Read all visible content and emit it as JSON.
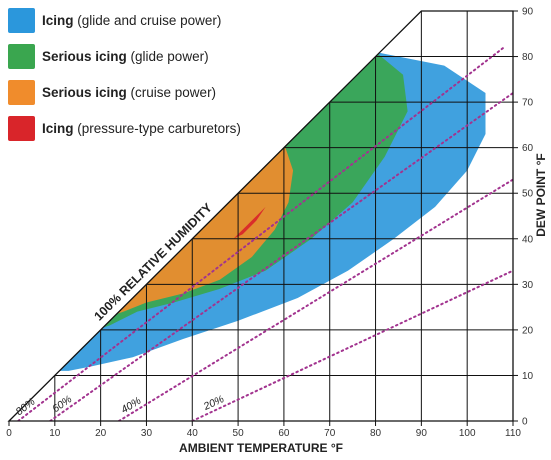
{
  "chart_data": {
    "type": "area",
    "title": "",
    "xlabel": "AMBIENT TEMPERATURE  °F",
    "ylabel": "DEW POINT  °F",
    "xlim": [
      0,
      110
    ],
    "ylim": [
      0,
      90
    ],
    "x_ticks": [
      "0",
      "10",
      "20",
      "30",
      "40",
      "50",
      "60",
      "70",
      "80",
      "90",
      "100",
      "110"
    ],
    "y_ticks": [
      "0",
      "10",
      "20",
      "30",
      "40",
      "50",
      "60",
      "70",
      "80",
      "90"
    ],
    "grid": true,
    "legend": {
      "position": "top-left",
      "entries": [
        {
          "bold": "Icing",
          "rest": " (glide and cruise power)",
          "color": "#2b97dc"
        },
        {
          "bold": "Serious icing",
          "rest": " (glide power)",
          "color": "#3aa64f"
        },
        {
          "bold": "Serious icing",
          "rest": " (cruise power)",
          "color": "#f08c2c"
        },
        {
          "bold": "Icing",
          "rest": " (pressure-type carburetors)",
          "color": "#d9252a"
        }
      ]
    },
    "saturation_line_label": "100% RELATIVE HUMIDITY",
    "humidity_lines": [
      {
        "label": "80%",
        "points": [
          [
            2,
            0
          ],
          [
            108,
            82
          ]
        ]
      },
      {
        "label": "60%",
        "points": [
          [
            9,
            0
          ],
          [
            110,
            72
          ]
        ]
      },
      {
        "label": "40%",
        "points": [
          [
            24,
            0
          ],
          [
            110,
            53
          ]
        ]
      },
      {
        "label": "20%",
        "points": [
          [
            40,
            0
          ],
          [
            110,
            33
          ]
        ]
      }
    ],
    "regions": [
      {
        "name": "Icing (glide and cruise power)",
        "color": "#2b97dc",
        "points": [
          [
            10,
            11
          ],
          [
            27,
            28
          ],
          [
            45,
            46
          ],
          [
            62,
            63
          ],
          [
            80,
            81
          ],
          [
            95,
            78
          ],
          [
            104,
            72
          ],
          [
            104,
            63
          ],
          [
            100,
            55
          ],
          [
            93,
            47
          ],
          [
            84,
            40
          ],
          [
            74,
            33
          ],
          [
            63,
            27
          ],
          [
            50,
            22
          ],
          [
            38,
            18
          ],
          [
            27,
            14
          ],
          [
            18,
            12
          ],
          [
            13,
            11
          ]
        ]
      },
      {
        "name": "Serious icing (glide power)",
        "color": "#3aa64f",
        "points": [
          [
            19,
            20
          ],
          [
            35,
            36
          ],
          [
            50,
            51
          ],
          [
            66,
            67
          ],
          [
            80,
            81
          ],
          [
            86,
            76
          ],
          [
            87,
            68
          ],
          [
            82,
            58
          ],
          [
            75,
            48
          ],
          [
            66,
            40
          ],
          [
            56,
            33
          ],
          [
            46,
            29
          ],
          [
            36,
            26
          ],
          [
            28,
            24
          ],
          [
            22,
            21
          ]
        ]
      },
      {
        "name": "Serious icing (cruise power)",
        "color": "#f08c2c",
        "points": [
          [
            22,
            23
          ],
          [
            36,
            37
          ],
          [
            50,
            51
          ],
          [
            60,
            61
          ],
          [
            62,
            55
          ],
          [
            61,
            48
          ],
          [
            58,
            42
          ],
          [
            53,
            36
          ],
          [
            46,
            31
          ],
          [
            38,
            28
          ],
          [
            30,
            26
          ],
          [
            25,
            24
          ]
        ]
      },
      {
        "name": "Icing (pressure-type carburetors)",
        "color": "#d9252a",
        "points": [
          [
            49,
            40
          ],
          [
            52,
            43
          ],
          [
            55,
            46
          ],
          [
            56,
            47
          ],
          [
            54,
            44
          ],
          [
            51,
            41
          ]
        ]
      }
    ]
  }
}
